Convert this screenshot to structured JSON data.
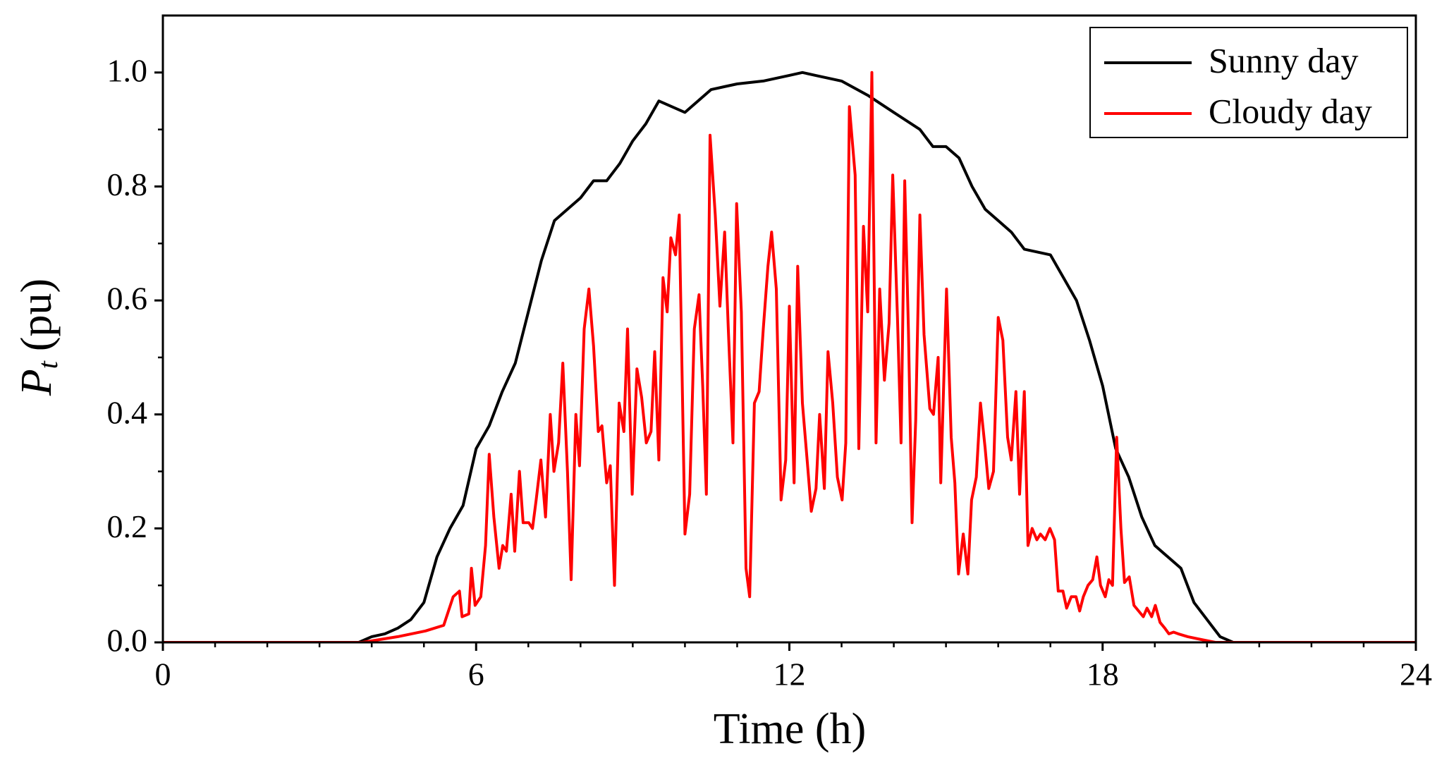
{
  "chart_data": {
    "type": "line",
    "xlabel": "Time (h)",
    "ylabel": {
      "main": "P",
      "sub": "t",
      "unit": "(pu)"
    },
    "xlim": [
      0,
      24
    ],
    "xticks": [
      0,
      6,
      12,
      18,
      24
    ],
    "xminorticks": [
      1,
      2,
      3,
      4,
      5,
      7,
      8,
      9,
      10,
      11,
      13,
      14,
      15,
      16,
      17,
      19,
      20,
      21,
      22,
      23
    ],
    "ylim": [
      0,
      1.1
    ],
    "yticks": [
      {
        "value": 0,
        "label": "0.0"
      },
      0.2,
      0.4,
      0.6,
      0.8,
      {
        "value": 1,
        "label": "1.0"
      }
    ],
    "yminorticks": [
      0.1,
      0.3,
      0.5,
      0.7,
      0.9
    ],
    "legend": "upper right",
    "series": [
      {
        "name": "Sunny day",
        "color": "#000000",
        "x": [
          0,
          3.75,
          4,
          4.25,
          4.5,
          4.75,
          5,
          5.25,
          5.5,
          5.75,
          6,
          6.25,
          6.5,
          6.75,
          7,
          7.25,
          7.5,
          7.75,
          8,
          8.25,
          8.5,
          8.75,
          9,
          9.25,
          9.5,
          9.75,
          10,
          10.25,
          10.5,
          10.75,
          11,
          11.5,
          12,
          12.25,
          12.5,
          13,
          13.5,
          14,
          14.5,
          14.75,
          15,
          15.25,
          15.5,
          15.75,
          16,
          16.25,
          16.5,
          17,
          17.25,
          17.5,
          17.75,
          18,
          18.25,
          18.5,
          18.75,
          19,
          19.25,
          19.5,
          19.75,
          20,
          20.25,
          20.5,
          24
        ],
        "values": [
          0,
          0,
          0.01,
          0.015,
          0.025,
          0.04,
          0.07,
          0.15,
          0.2,
          0.24,
          0.34,
          0.38,
          0.44,
          0.49,
          0.58,
          0.67,
          0.74,
          0.76,
          0.78,
          0.81,
          0.81,
          0.84,
          0.88,
          0.91,
          0.95,
          0.94,
          0.93,
          0.95,
          0.97,
          0.975,
          0.98,
          0.985,
          0.995,
          1.0,
          0.995,
          0.985,
          0.96,
          0.93,
          0.9,
          0.87,
          0.87,
          0.85,
          0.8,
          0.76,
          0.74,
          0.72,
          0.69,
          0.68,
          0.64,
          0.6,
          0.53,
          0.45,
          0.34,
          0.29,
          0.22,
          0.17,
          0.15,
          0.13,
          0.07,
          0.04,
          0.01,
          0,
          0
        ]
      },
      {
        "name": "Cloudy day",
        "color": "#ff0000",
        "x": [
          0,
          3.82,
          4.5,
          5.03,
          5.38,
          5.56,
          5.68,
          5.73,
          5.86,
          5.91,
          5.98,
          6.09,
          6.18,
          6.25,
          6.34,
          6.44,
          6.51,
          6.58,
          6.67,
          6.74,
          6.83,
          6.9,
          7.01,
          7.08,
          7.15,
          7.24,
          7.33,
          7.42,
          7.49,
          7.58,
          7.66,
          7.75,
          7.82,
          7.91,
          7.98,
          8.07,
          8.16,
          8.25,
          8.34,
          8.41,
          8.5,
          8.57,
          8.65,
          8.74,
          8.83,
          8.9,
          8.99,
          9.08,
          9.17,
          9.26,
          9.35,
          9.42,
          9.5,
          9.58,
          9.66,
          9.73,
          9.82,
          9.89,
          10,
          10.09,
          10.18,
          10.27,
          10.34,
          10.41,
          10.48,
          10.58,
          10.67,
          10.76,
          10.83,
          10.92,
          10.99,
          11.08,
          11.17,
          11.24,
          11.33,
          11.42,
          11.5,
          11.59,
          11.66,
          11.75,
          11.84,
          11.93,
          12,
          12.09,
          12.16,
          12.25,
          12.34,
          12.42,
          12.51,
          12.58,
          12.67,
          12.74,
          12.83,
          12.92,
          13.01,
          13.08,
          13.15,
          13.26,
          13.33,
          13.42,
          13.5,
          13.58,
          13.66,
          13.73,
          13.82,
          13.91,
          13.98,
          14.07,
          14.14,
          14.21,
          14.28,
          14.35,
          14.42,
          14.5,
          14.58,
          14.69,
          14.76,
          14.85,
          14.9,
          15.01,
          15.1,
          15.17,
          15.24,
          15.33,
          15.42,
          15.49,
          15.58,
          15.66,
          15.75,
          15.82,
          15.91,
          16,
          16.09,
          16.18,
          16.25,
          16.34,
          16.41,
          16.5,
          16.57,
          16.65,
          16.74,
          16.81,
          16.9,
          16.99,
          17.08,
          17.15,
          17.24,
          17.31,
          17.4,
          17.49,
          17.56,
          17.63,
          17.72,
          17.81,
          17.89,
          17.96,
          18.05,
          18.12,
          18.19,
          18.27,
          18.35,
          18.42,
          18.51,
          18.6,
          18.69,
          18.78,
          18.85,
          18.94,
          19.01,
          19.1,
          19.19,
          19.27,
          19.36,
          19.45,
          19.63,
          19.89,
          20.16,
          24
        ],
        "values": [
          0,
          0,
          0.01,
          0.02,
          0.03,
          0.08,
          0.09,
          0.045,
          0.05,
          0.13,
          0.065,
          0.08,
          0.17,
          0.33,
          0.22,
          0.13,
          0.17,
          0.16,
          0.26,
          0.16,
          0.3,
          0.21,
          0.21,
          0.2,
          0.25,
          0.32,
          0.22,
          0.4,
          0.3,
          0.35,
          0.49,
          0.3,
          0.11,
          0.4,
          0.31,
          0.55,
          0.62,
          0.52,
          0.37,
          0.38,
          0.28,
          0.31,
          0.1,
          0.42,
          0.37,
          0.55,
          0.26,
          0.48,
          0.43,
          0.35,
          0.37,
          0.51,
          0.32,
          0.64,
          0.58,
          0.71,
          0.68,
          0.75,
          0.19,
          0.26,
          0.55,
          0.61,
          0.45,
          0.26,
          0.89,
          0.75,
          0.59,
          0.72,
          0.55,
          0.35,
          0.77,
          0.58,
          0.13,
          0.08,
          0.42,
          0.44,
          0.55,
          0.66,
          0.72,
          0.62,
          0.25,
          0.32,
          0.59,
          0.28,
          0.66,
          0.42,
          0.32,
          0.23,
          0.27,
          0.4,
          0.27,
          0.51,
          0.42,
          0.29,
          0.25,
          0.35,
          0.94,
          0.82,
          0.34,
          0.73,
          0.58,
          1.0,
          0.35,
          0.62,
          0.46,
          0.56,
          0.82,
          0.57,
          0.35,
          0.81,
          0.55,
          0.21,
          0.39,
          0.75,
          0.54,
          0.41,
          0.4,
          0.5,
          0.28,
          0.62,
          0.36,
          0.28,
          0.12,
          0.19,
          0.12,
          0.25,
          0.29,
          0.42,
          0.34,
          0.27,
          0.3,
          0.57,
          0.53,
          0.36,
          0.32,
          0.44,
          0.26,
          0.44,
          0.17,
          0.2,
          0.18,
          0.19,
          0.18,
          0.2,
          0.18,
          0.09,
          0.09,
          0.06,
          0.08,
          0.08,
          0.055,
          0.08,
          0.1,
          0.11,
          0.15,
          0.1,
          0.08,
          0.11,
          0.1,
          0.36,
          0.2,
          0.105,
          0.115,
          0.065,
          0.055,
          0.045,
          0.06,
          0.045,
          0.065,
          0.035,
          0.025,
          0.015,
          0.018,
          0.015,
          0.01,
          0.005,
          0,
          0
        ]
      }
    ]
  }
}
